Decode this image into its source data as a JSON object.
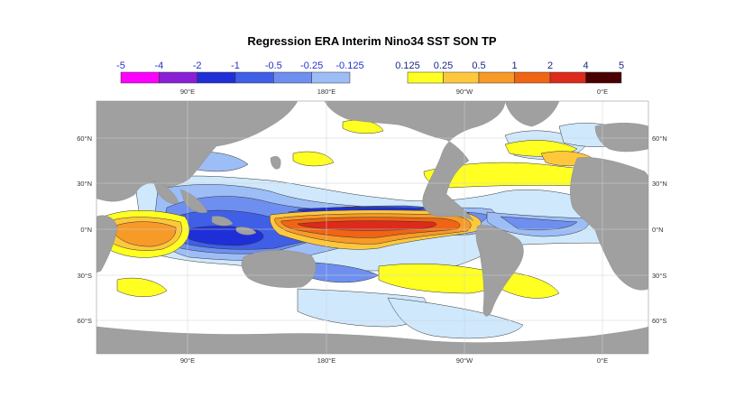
{
  "title": "Regression ERA Interim Nino34 SST SON TP",
  "colorbar_negative": {
    "labels": [
      "-5",
      "-4",
      "-2",
      "-1",
      "-0.5",
      "-0.25",
      "-0.125"
    ],
    "colors": [
      "#ff00ff",
      "#8a1fd6",
      "#1f2fd8",
      "#3f5fe6",
      "#6e8ff0",
      "#9dbdf6",
      "#cfe8fc"
    ],
    "label_color": "#2233cc"
  },
  "colorbar_positive": {
    "labels": [
      "0.125",
      "0.25",
      "0.5",
      "1",
      "2",
      "4",
      "5"
    ],
    "colors": [
      "#ffff22",
      "#ffc83c",
      "#f79a28",
      "#f06414",
      "#dd2a1a",
      "#4a0000"
    ],
    "label_color": "#1a2a7a"
  },
  "lon_labels": [
    "90°E",
    "180°E",
    "90°W",
    "0°E"
  ],
  "lat_labels": [
    "60°N",
    "30°N",
    "0°N",
    "30°S",
    "60°S"
  ],
  "colors": {
    "land": "#a0a0a0",
    "ocean": "#ffffff",
    "grid": "#cccccc"
  }
}
